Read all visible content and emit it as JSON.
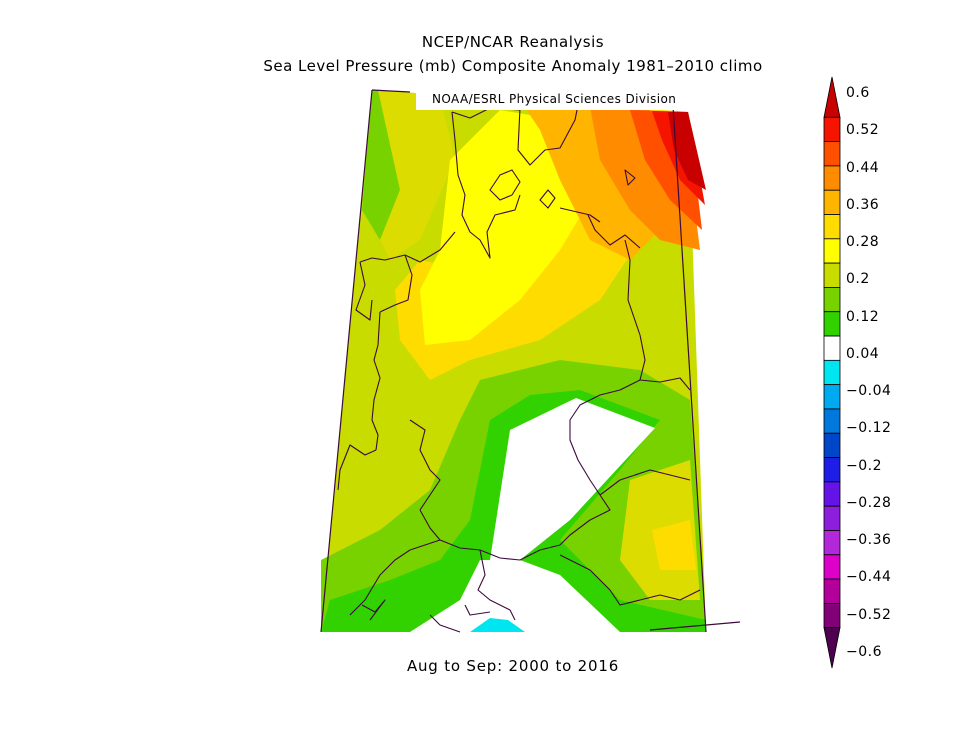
{
  "header": {
    "title": "NCEP/NCAR Reanalysis",
    "subtitle": "Sea Level Pressure (mb) Composite Anomaly 1981–2010 climo",
    "credit": "NOAA/ESRL Physical Sciences Division"
  },
  "footer": {
    "period": "Aug to Sep: 2000 to 2016"
  },
  "legend": {
    "labels": [
      "0.6",
      "0.52",
      "0.44",
      "0.36",
      "0.28",
      "0.2",
      "0.12",
      "0.04",
      "−0.04",
      "−0.12",
      "−0.2",
      "−0.28",
      "−0.36",
      "−0.44",
      "−0.52",
      "−0.6"
    ],
    "colors": [
      "#c80000",
      "#f51400",
      "#ff5000",
      "#ff8c00",
      "#ffb400",
      "#ffdc00",
      "#ffff00",
      "#c8dc00",
      "#78d200",
      "#32d200",
      "#ffffff",
      "#00e6f0",
      "#00aaf0",
      "#0078dc",
      "#0046c8",
      "#1e1ee6",
      "#6414e6",
      "#8c1edc",
      "#b428dc",
      "#dc00c8",
      "#b4009b",
      "#820078",
      "#500050"
    ]
  },
  "map": {
    "region": "Central Europe",
    "colors": {
      "c028": "#c8dc00",
      "c020": "#dcdc00",
      "c012": "#78d200",
      "c004": "#32d200",
      "c036": "#ffdc00",
      "c032": "#ffff00",
      "c040": "#ffb400",
      "c044": "#ff8c00",
      "c048": "#ff5000",
      "c052": "#f51400",
      "c060": "#c80000",
      "neg": "#00e6f0",
      "white": "#ffffff",
      "border": "#3c0a3c"
    }
  }
}
